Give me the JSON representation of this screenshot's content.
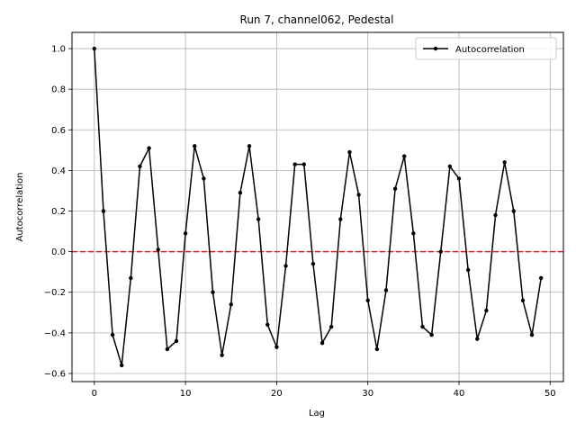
{
  "chart_data": {
    "type": "line",
    "title": "Run 7, channel062, Pedestal",
    "xlabel": "Lag",
    "ylabel": "Autocorrelation",
    "xlim": [
      -2.45,
      51.45
    ],
    "ylim": [
      -0.64,
      1.08
    ],
    "xticks": [
      0,
      10,
      20,
      30,
      40,
      50
    ],
    "yticks": [
      -0.6,
      -0.4,
      -0.2,
      0.0,
      0.2,
      0.4,
      0.6,
      0.8,
      1.0
    ],
    "xtick_labels": [
      "0",
      "10",
      "20",
      "30",
      "40",
      "50"
    ],
    "ytick_labels": [
      "−0.6",
      "−0.4",
      "−0.2",
      "0.0",
      "0.2",
      "0.4",
      "0.6",
      "0.8",
      "1.0"
    ],
    "grid": true,
    "legend_position": "top-right",
    "series": [
      {
        "name": "Autocorrelation",
        "color": "#000000",
        "marker": "circle",
        "x": [
          0,
          1,
          2,
          3,
          4,
          5,
          6,
          7,
          8,
          9,
          10,
          11,
          12,
          13,
          14,
          15,
          16,
          17,
          18,
          19,
          20,
          21,
          22,
          23,
          24,
          25,
          26,
          27,
          28,
          29,
          30,
          31,
          32,
          33,
          34,
          35,
          36,
          37,
          38,
          39,
          40,
          41,
          42,
          43,
          44,
          45,
          46,
          47,
          48,
          49
        ],
        "values": [
          1.0,
          0.2,
          -0.41,
          -0.56,
          -0.13,
          0.42,
          0.51,
          0.01,
          -0.48,
          -0.44,
          0.09,
          0.52,
          0.36,
          -0.2,
          -0.51,
          -0.26,
          0.29,
          0.52,
          0.16,
          -0.36,
          -0.47,
          -0.07,
          0.43,
          0.43,
          -0.06,
          -0.45,
          -0.37,
          0.16,
          0.49,
          0.28,
          -0.24,
          -0.48,
          -0.19,
          0.31,
          0.47,
          0.09,
          -0.37,
          -0.41,
          0.0,
          0.42,
          0.36,
          -0.09,
          -0.43,
          -0.29,
          0.18,
          0.44,
          0.2,
          -0.24,
          -0.41,
          -0.13
        ]
      }
    ],
    "reference_line": {
      "y": 0.0,
      "color": "#d62728",
      "style": "dashed"
    }
  }
}
